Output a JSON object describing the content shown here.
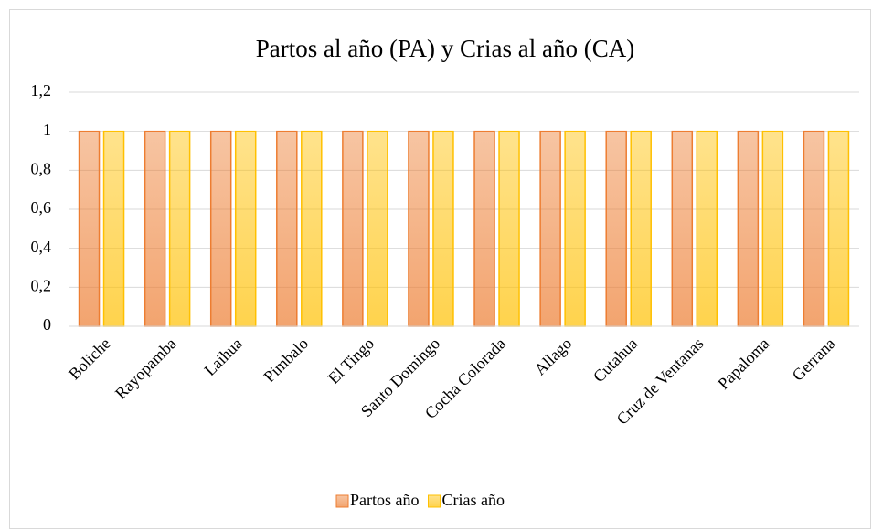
{
  "chart_data": {
    "type": "bar",
    "title": "Partos al año (PA) y Crias al año (CA)",
    "categories": [
      "Boliche",
      "Rayopamba",
      "Laihua",
      "Pimbalo",
      "El Tingo",
      "Santo Domingo",
      "Cocha Colorada",
      "Allago",
      "Cutahua",
      "Cruz de Ventanas",
      "Papaloma",
      "Gerrana"
    ],
    "series": [
      {
        "name": "Partos año",
        "color": "#ed7d31",
        "values": [
          1,
          1,
          1,
          1,
          1,
          1,
          1,
          1,
          1,
          1,
          1,
          1
        ]
      },
      {
        "name": "Crias año",
        "color": "#ffc000",
        "values": [
          1,
          1,
          1,
          1,
          1,
          1,
          1,
          1,
          1,
          1,
          1,
          1
        ]
      }
    ],
    "ylim": [
      0,
      1.2
    ],
    "yticks": [
      0,
      {
        "value": 0.2,
        "label": "0,2"
      },
      {
        "value": 0.4,
        "label": "0,4"
      },
      {
        "value": 0.6,
        "label": "0,6"
      },
      {
        "value": 0.8,
        "label": "0,8"
      },
      1,
      {
        "value": 1.2,
        "label": "1,2"
      }
    ],
    "grid": true,
    "legend": "bottom"
  }
}
